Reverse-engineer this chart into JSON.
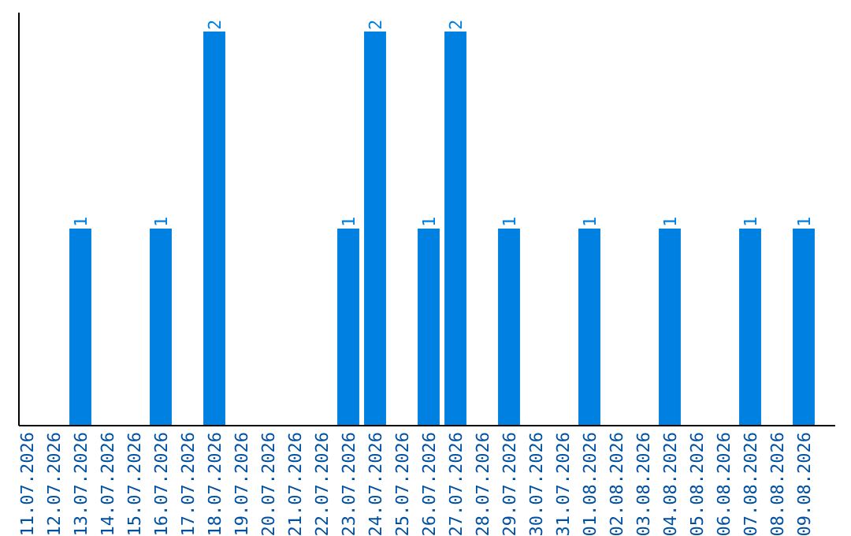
{
  "chart_data": {
    "type": "bar",
    "categories": [
      "11.07.2026",
      "12.07.2026",
      "13.07.2026",
      "14.07.2026",
      "15.07.2026",
      "16.07.2026",
      "17.07.2026",
      "18.07.2026",
      "19.07.2026",
      "20.07.2026",
      "21.07.2026",
      "22.07.2026",
      "23.07.2026",
      "24.07.2026",
      "25.07.2026",
      "26.07.2026",
      "27.07.2026",
      "28.07.2026",
      "29.07.2026",
      "30.07.2026",
      "31.07.2026",
      "01.08.2026",
      "02.08.2026",
      "03.08.2026",
      "04.08.2026",
      "05.08.2026",
      "06.08.2026",
      "07.08.2026",
      "08.08.2026",
      "09.08.2026"
    ],
    "values": [
      0,
      0,
      1,
      0,
      0,
      1,
      0,
      2,
      0,
      0,
      0,
      0,
      1,
      2,
      0,
      1,
      2,
      0,
      1,
      0,
      0,
      1,
      0,
      0,
      1,
      0,
      0,
      1,
      0,
      1
    ],
    "value_labels": [
      null,
      null,
      "1",
      null,
      null,
      "1",
      null,
      "2",
      null,
      null,
      null,
      null,
      "1",
      "2",
      null,
      "1",
      "2",
      null,
      "1",
      null,
      null,
      "1",
      null,
      null,
      "1",
      null,
      null,
      "1",
      null,
      "1"
    ],
    "color": "#0080e0",
    "ylim": [
      0,
      2
    ],
    "tick_labels": "x"
  }
}
